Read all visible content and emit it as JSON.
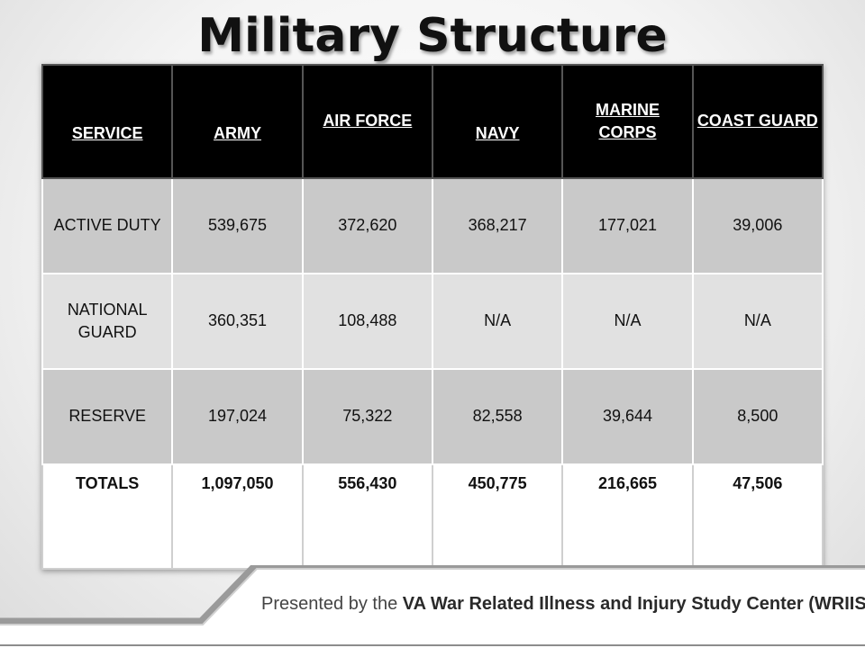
{
  "title": "Military Structure",
  "table": {
    "headers": [
      "SERVICE",
      "ARMY",
      "AIR FORCE",
      "NAVY",
      "MARINE CORPS",
      "COAST GUARD"
    ],
    "rows": [
      {
        "label": "ACTIVE DUTY",
        "values": [
          "539,675",
          "372,620",
          "368,217",
          "177,021",
          "39,006"
        ]
      },
      {
        "label": "NATIONAL GUARD",
        "values": [
          "360,351",
          "108,488",
          "N/A",
          "N/A",
          "N/A"
        ]
      },
      {
        "label": "RESERVE",
        "values": [
          "197,024",
          "75,322",
          "82,558",
          "39,644",
          "8,500"
        ]
      },
      {
        "label": "TOTALS",
        "values": [
          "1,097,050",
          "556,430",
          "450,775",
          "216,665",
          "47,506"
        ]
      }
    ]
  },
  "footer": {
    "prefix": "Presented by the",
    "org": "VA War Related Illness and Injury Study Center (WRIISC)"
  }
}
